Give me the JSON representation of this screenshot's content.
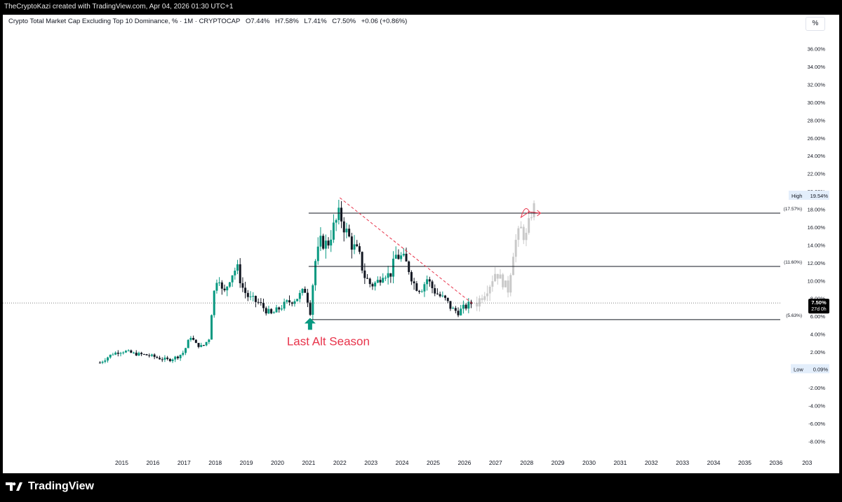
{
  "header": {
    "credit": "TheCryptoKazi created with TradingView.com, Apr 04, 2026 01:30 UTC+1"
  },
  "legend": {
    "title": "Crypto Total Market Cap Excluding Top 10 Dominance, % · 1M · CRYPTOCAP",
    "open": "O7.44%",
    "high": "H7.58%",
    "low": "L7.41%",
    "close": "C7.50%",
    "change": "+0.06 (+0.86%)"
  },
  "scale_button": "%",
  "footer": {
    "brand": "TradingView"
  },
  "colors": {
    "up": "#089981",
    "down": "#131722",
    "projection": "#c9c9c9",
    "annotation": "#e8334a",
    "arrow": "#089981"
  },
  "chart_data": {
    "type": "candlestick",
    "ylim": [
      -9,
      38
    ],
    "y_ticks": [
      "36.00%",
      "34.00%",
      "32.00%",
      "30.00%",
      "28.00%",
      "26.00%",
      "24.00%",
      "22.00%",
      "20.00%",
      "18.00%",
      "16.00%",
      "14.00%",
      "12.00%",
      "10.00%",
      "8.00%",
      "6.00%",
      "4.00%",
      "2.00%",
      "0.00%",
      "-2.00%",
      "-4.00%",
      "-6.00%",
      "-8.00%"
    ],
    "x_ticks": [
      "2015",
      "2016",
      "2017",
      "2018",
      "2019",
      "2020",
      "2021",
      "2022",
      "2023",
      "2024",
      "2025",
      "2026",
      "2027",
      "2028",
      "2029",
      "2030",
      "2031",
      "2032",
      "2033",
      "2034",
      "2035",
      "2036",
      "203"
    ],
    "close_path": [
      [
        2014.3,
        0.8
      ],
      [
        2014.5,
        1.3
      ],
      [
        2014.7,
        1.8
      ],
      [
        2014.9,
        2.0
      ],
      [
        2015.1,
        2.1
      ],
      [
        2015.4,
        1.8
      ],
      [
        2015.7,
        1.7
      ],
      [
        2015.9,
        1.6
      ],
      [
        2016.2,
        1.3
      ],
      [
        2016.5,
        1.1
      ],
      [
        2016.8,
        1.5
      ],
      [
        2017.0,
        2.0
      ],
      [
        2017.2,
        3.8
      ],
      [
        2017.4,
        2.8
      ],
      [
        2017.6,
        2.6
      ],
      [
        2017.8,
        3.5
      ],
      [
        2017.95,
        8.5
      ],
      [
        2018.1,
        11.0
      ],
      [
        2018.25,
        8.2
      ],
      [
        2018.5,
        10.6
      ],
      [
        2018.7,
        11.5
      ],
      [
        2018.9,
        9.0
      ],
      [
        2019.1,
        8.0
      ],
      [
        2019.4,
        7.5
      ],
      [
        2019.6,
        6.8
      ],
      [
        2019.8,
        6.2
      ],
      [
        2020.1,
        7.0
      ],
      [
        2020.3,
        7.5
      ],
      [
        2020.6,
        8.0
      ],
      [
        2020.9,
        9.0
      ],
      [
        2021.05,
        6.6
      ],
      [
        2021.2,
        12.0
      ],
      [
        2021.4,
        14.5
      ],
      [
        2021.6,
        14.0
      ],
      [
        2021.8,
        16.0
      ],
      [
        2022.0,
        17.5
      ],
      [
        2022.2,
        15.5
      ],
      [
        2022.4,
        14.0
      ],
      [
        2022.6,
        13.0
      ],
      [
        2022.8,
        10.5
      ],
      [
        2023.0,
        9.5
      ],
      [
        2023.2,
        9.8
      ],
      [
        2023.4,
        11.0
      ],
      [
        2023.6,
        10.5
      ],
      [
        2023.8,
        12.8
      ],
      [
        2024.0,
        12.6
      ],
      [
        2024.2,
        11.5
      ],
      [
        2024.4,
        9.5
      ],
      [
        2024.6,
        9.0
      ],
      [
        2024.8,
        10.2
      ],
      [
        2025.0,
        9.0
      ],
      [
        2025.2,
        8.3
      ],
      [
        2025.4,
        7.8
      ],
      [
        2025.6,
        6.8
      ],
      [
        2025.8,
        6.5
      ],
      [
        2026.0,
        7.0
      ],
      [
        2026.2,
        7.44
      ],
      [
        2026.25,
        7.5
      ]
    ],
    "projection_path": [
      [
        2026.4,
        7.5
      ],
      [
        2026.6,
        8.5
      ],
      [
        2026.8,
        9.5
      ],
      [
        2027.0,
        11.0
      ],
      [
        2027.2,
        10.0
      ],
      [
        2027.4,
        9.0
      ],
      [
        2027.6,
        14.0
      ],
      [
        2027.8,
        16.0
      ],
      [
        2027.95,
        14.5
      ],
      [
        2028.1,
        17.0
      ],
      [
        2028.3,
        19.0
      ]
    ],
    "levels": [
      {
        "label": "(17.57%)",
        "value": 17.57,
        "x_from": 2021.0
      },
      {
        "label": "(11.60%)",
        "value": 11.6,
        "x_from": 2021.0
      },
      {
        "label": "(5.63%)",
        "value": 5.63,
        "x_from": 2021.0
      }
    ],
    "trendline": {
      "from": [
        2022.0,
        19.3
      ],
      "to": [
        2026.3,
        7.3
      ]
    },
    "last_price": {
      "value": 7.5,
      "label": "7.50%",
      "countdown": "27d 0h"
    },
    "high": {
      "label": "High",
      "value": "19.54%"
    },
    "low": {
      "label": "Low",
      "value": "0.09%"
    },
    "annotations": [
      {
        "text": "Last Alt Season",
        "at": [
          2021.0,
          5.2
        ]
      }
    ]
  }
}
